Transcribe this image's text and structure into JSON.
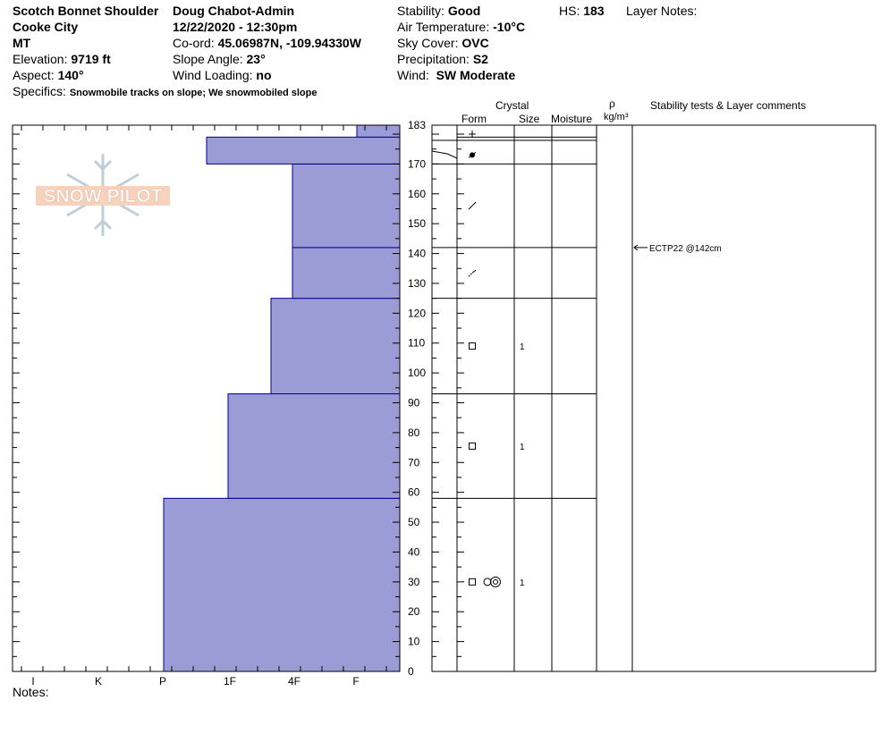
{
  "header": {
    "location": "Scotch Bonnet Shoulder",
    "area": "Cooke City",
    "state": "MT",
    "elevation_label": "Elevation:",
    "elevation_value": "9719 ft",
    "aspect_label": "Aspect:",
    "aspect_value": "140°",
    "specifics_label": "Specifics:",
    "specifics_value": "Snowmobile tracks on slope; We snowmobiled slope",
    "observer": "Doug Chabot-Admin",
    "datetime": "12/22/2020 - 12:30pm",
    "coord_label": "Co-ord:",
    "coord_value": "45.06987N, -109.94330W",
    "slope_label": "Slope Angle:",
    "slope_value": "23°",
    "wind_loading_label": "Wind Loading:",
    "wind_loading_value": "no",
    "stability_label": "Stability:",
    "stability_value": "Good",
    "air_temp_label": "Air Temperature:",
    "air_temp_value": "-10°C",
    "sky_label": "Sky Cover:",
    "sky_value": "OVC",
    "precip_label": "Precipitation:",
    "precip_value": "S2",
    "wind_label": "Wind:",
    "wind_value": "SW Moderate",
    "hs_label": "HS:",
    "hs_value": "183",
    "layer_notes_label": "Layer Notes:"
  },
  "columns": {
    "crystal": "Crystal",
    "form": "Form",
    "size": "Size",
    "moisture": "Moisture",
    "rho": "ρ",
    "density_unit": "kg/m³",
    "stability_comments": "Stability tests & Layer comments"
  },
  "logo_text": "SNOW PILOT",
  "notes_label": "Notes:",
  "colors": {
    "hardness_fill": "#9b9bd6",
    "hardness_stroke": "#00008b"
  },
  "chart_data": {
    "type": "bar",
    "orientation": "horizontal",
    "hs": 183,
    "y_ticks": [
      0,
      10,
      20,
      30,
      40,
      50,
      60,
      70,
      80,
      90,
      100,
      110,
      120,
      130,
      140,
      150,
      160,
      170,
      183
    ],
    "ylim": [
      0,
      183
    ],
    "hardness_scale": [
      "I",
      "K",
      "P",
      "1F",
      "4F",
      "F"
    ],
    "layers": [
      {
        "bottom": 0,
        "top": 58,
        "hardness": "P",
        "form": "square",
        "form2": "rimed",
        "size": "1"
      },
      {
        "bottom": 58,
        "top": 93,
        "hardness": "1F",
        "form": "square",
        "size": "1"
      },
      {
        "bottom": 93,
        "top": 125,
        "hardness": "4F-",
        "form": "square",
        "size": "1"
      },
      {
        "bottom": 125,
        "top": 142,
        "hardness": "4F",
        "form": "decomposed",
        "size": ""
      },
      {
        "bottom": 142,
        "top": 170,
        "hardness": "4F",
        "form": "fragment",
        "size": ""
      },
      {
        "bottom": 170,
        "top": 179,
        "hardness": "1F+",
        "form": "graupel",
        "size": ""
      },
      {
        "bottom": 179,
        "top": 183,
        "hardness": "F-",
        "form": "plus",
        "size": ""
      }
    ],
    "stability_tests": [
      {
        "depth": 142,
        "text": "ECTP22 @142cm"
      }
    ]
  }
}
